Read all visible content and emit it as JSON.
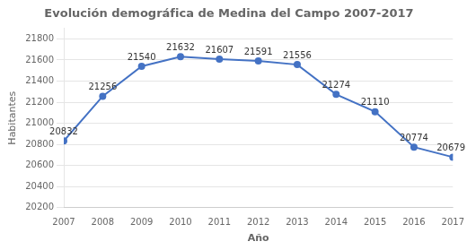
{
  "chart_data": {
    "type": "line",
    "title": "Evolución demográfica de Medina del Campo 2007-2017",
    "x_label": "Año",
    "y_label": "Habitantes",
    "x": [
      2007,
      2008,
      2009,
      2010,
      2011,
      2012,
      2013,
      2014,
      2015,
      2016,
      2017
    ],
    "values": [
      20832,
      21256,
      21540,
      21632,
      21607,
      21591,
      21556,
      21274,
      21110,
      20774,
      20679
    ],
    "color": "#4472C4",
    "marker": "circle",
    "xlim": [
      2007,
      2017
    ],
    "xticks": [
      2007,
      2008,
      2009,
      2010,
      2011,
      2012,
      2013,
      2014,
      2015,
      2016,
      2017
    ],
    "ylim": [
      20200,
      21900
    ],
    "yticks": [
      20200,
      20400,
      20600,
      20800,
      21000,
      21200,
      21400,
      21600,
      21800
    ],
    "grid": "y",
    "data_labels": true
  }
}
